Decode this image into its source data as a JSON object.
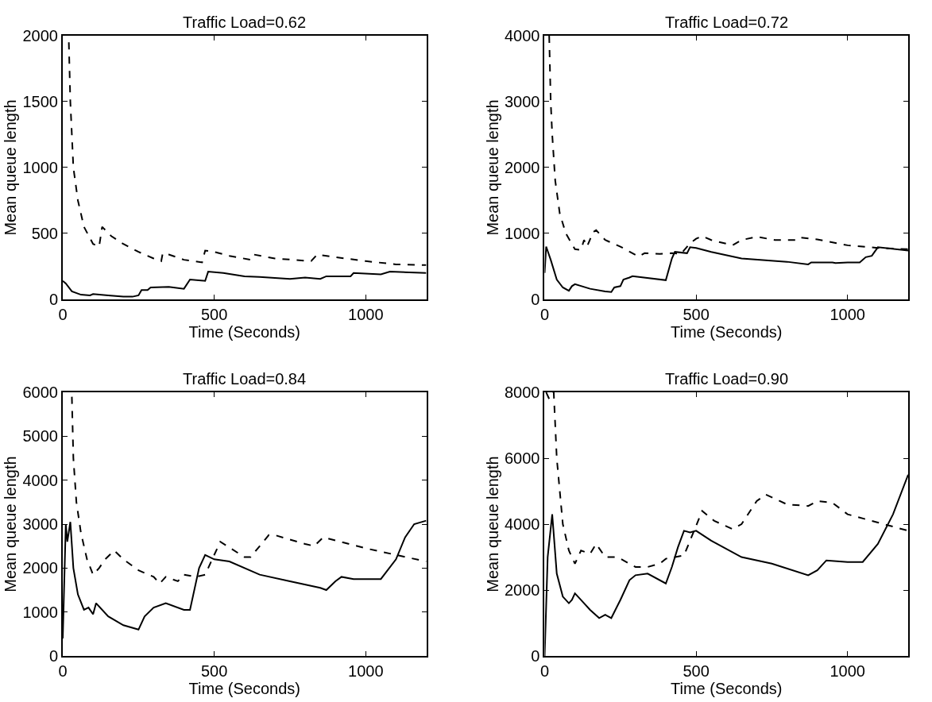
{
  "chart_data": [
    {
      "type": "line",
      "title": "Traffic Load=0.62",
      "xlabel": "Time (Seconds)",
      "ylabel": "Mean queue length",
      "xlim": [
        0,
        1200
      ],
      "xticks": [
        0,
        500,
        1000
      ],
      "ylim": [
        0,
        2000
      ],
      "yticks": [
        0,
        500,
        1000,
        1500,
        2000
      ],
      "series": [
        {
          "color": "#000000",
          "line_style": "solid",
          "x": [
            0,
            10,
            30,
            60,
            90,
            100,
            150,
            200,
            230,
            250,
            260,
            280,
            290,
            350,
            400,
            420,
            470,
            480,
            530,
            600,
            650,
            750,
            800,
            850,
            870,
            950,
            960,
            1050,
            1080,
            1200
          ],
          "values": [
            140,
            120,
            60,
            35,
            30,
            40,
            30,
            20,
            20,
            30,
            70,
            70,
            90,
            95,
            80,
            150,
            140,
            210,
            200,
            175,
            170,
            155,
            165,
            155,
            175,
            175,
            200,
            190,
            210,
            200
          ]
        },
        {
          "color": "#000000",
          "line_style": "dashed",
          "x": [
            20,
            25,
            35,
            50,
            70,
            100,
            120,
            130,
            160,
            200,
            250,
            300,
            325,
            330,
            350,
            400,
            460,
            470,
            500,
            550,
            620,
            630,
            700,
            820,
            840,
            900,
            1000,
            1100,
            1200
          ],
          "values": [
            1950,
            1500,
            1000,
            750,
            550,
            420,
            400,
            550,
            480,
            420,
            360,
            310,
            290,
            350,
            340,
            300,
            280,
            370,
            360,
            330,
            300,
            340,
            310,
            290,
            340,
            320,
            290,
            265,
            260
          ]
        }
      ]
    },
    {
      "type": "line",
      "title": "Traffic Load=0.72",
      "xlabel": "Time (Seconds)",
      "ylabel": "Mean queue length",
      "xlim": [
        0,
        1200
      ],
      "xticks": [
        0,
        500,
        1000
      ],
      "ylim": [
        0,
        4000
      ],
      "yticks": [
        0,
        1000,
        2000,
        3000,
        4000
      ],
      "series": [
        {
          "color": "#000000",
          "line_style": "solid",
          "x": [
            0,
            5,
            20,
            40,
            60,
            80,
            90,
            100,
            150,
            200,
            220,
            230,
            250,
            260,
            280,
            290,
            400,
            420,
            430,
            470,
            480,
            500,
            550,
            650,
            800,
            870,
            880,
            950,
            960,
            1000,
            1040,
            1060,
            1080,
            1100,
            1200
          ],
          "values": [
            400,
            800,
            600,
            300,
            180,
            130,
            200,
            230,
            160,
            120,
            110,
            180,
            200,
            300,
            330,
            350,
            290,
            620,
            720,
            700,
            790,
            780,
            720,
            620,
            570,
            530,
            560,
            560,
            550,
            560,
            560,
            640,
            660,
            790,
            740
          ]
        },
        {
          "color": "#000000",
          "line_style": "dashed",
          "x": [
            15,
            20,
            25,
            35,
            50,
            70,
            100,
            120,
            130,
            140,
            160,
            170,
            200,
            250,
            310,
            330,
            380,
            420,
            450,
            480,
            500,
            520,
            550,
            620,
            650,
            700,
            760,
            830,
            840,
            900,
            1000,
            1100,
            1200
          ],
          "values": [
            4000,
            3000,
            2500,
            1800,
            1300,
            1000,
            760,
            750,
            900,
            800,
            1020,
            1050,
            900,
            800,
            650,
            700,
            690,
            700,
            690,
            850,
            920,
            960,
            900,
            820,
            900,
            950,
            900,
            900,
            940,
            910,
            820,
            780,
            760
          ]
        }
      ]
    },
    {
      "type": "line",
      "title": "Traffic Load=0.84",
      "xlabel": "Time (Seconds)",
      "ylabel": "Mean queue length",
      "xlim": [
        0,
        1200
      ],
      "xticks": [
        0,
        500,
        1000
      ],
      "ylim": [
        0,
        6000
      ],
      "yticks": [
        0,
        1000,
        2000,
        3000,
        4000,
        5000,
        6000
      ],
      "series": [
        {
          "color": "#000000",
          "line_style": "solid",
          "x": [
            0,
            10,
            15,
            25,
            35,
            50,
            70,
            85,
            100,
            110,
            150,
            200,
            250,
            270,
            300,
            340,
            400,
            420,
            450,
            470,
            500,
            550,
            650,
            750,
            850,
            870,
            900,
            920,
            960,
            1000,
            1050,
            1100,
            1130,
            1160,
            1200
          ],
          "values": [
            400,
            3000,
            2600,
            3050,
            2000,
            1400,
            1050,
            1100,
            950,
            1200,
            900,
            700,
            600,
            900,
            1100,
            1200,
            1050,
            1050,
            2000,
            2300,
            2200,
            2150,
            1850,
            1700,
            1550,
            1500,
            1700,
            1800,
            1750,
            1750,
            1750,
            2200,
            2700,
            3000,
            3080
          ]
        },
        {
          "color": "#000000",
          "line_style": "dashed",
          "x": [
            30,
            35,
            45,
            60,
            80,
            100,
            120,
            140,
            170,
            200,
            250,
            300,
            320,
            340,
            380,
            400,
            440,
            470,
            500,
            520,
            600,
            620,
            680,
            700,
            800,
            830,
            860,
            1000,
            1100,
            1200
          ],
          "values": [
            5900,
            4500,
            3500,
            2800,
            2200,
            1850,
            2000,
            2200,
            2400,
            2200,
            1950,
            1800,
            1650,
            1800,
            1700,
            1850,
            1800,
            1850,
            2300,
            2600,
            2250,
            2250,
            2750,
            2750,
            2550,
            2500,
            2700,
            2450,
            2300,
            2150
          ]
        }
      ]
    },
    {
      "type": "line",
      "title": "Traffic Load=0.90",
      "xlabel": "Time (Seconds)",
      "ylabel": "Mean queue length",
      "xlim": [
        0,
        1200
      ],
      "xticks": [
        0,
        500,
        1000
      ],
      "ylim": [
        0,
        8000
      ],
      "yticks": [
        0,
        2000,
        4000,
        6000,
        8000
      ],
      "series": [
        {
          "color": "#000000",
          "line_style": "solid",
          "x": [
            0,
            10,
            25,
            40,
            60,
            80,
            90,
            100,
            150,
            180,
            200,
            220,
            250,
            280,
            300,
            340,
            400,
            420,
            440,
            460,
            480,
            500,
            550,
            650,
            750,
            870,
            900,
            930,
            1000,
            1050,
            1100,
            1150,
            1200
          ],
          "values": [
            0,
            3000,
            4300,
            2500,
            1800,
            1600,
            1700,
            1900,
            1400,
            1150,
            1250,
            1150,
            1700,
            2300,
            2450,
            2500,
            2200,
            2700,
            3300,
            3800,
            3750,
            3800,
            3500,
            3000,
            2800,
            2450,
            2600,
            2900,
            2850,
            2850,
            3400,
            4300,
            5500
          ]
        },
        {
          "color": "#000000",
          "line_style": "dashed",
          "x": [
            5,
            15,
            30,
            40,
            60,
            80,
            100,
            120,
            150,
            170,
            200,
            240,
            300,
            340,
            380,
            400,
            460,
            480,
            520,
            560,
            620,
            650,
            700,
            730,
            800,
            870,
            900,
            950,
            1000,
            1100,
            1200
          ],
          "values": [
            8000,
            7800,
            8000,
            6000,
            4000,
            3200,
            2800,
            3200,
            3100,
            3400,
            3000,
            3000,
            2700,
            2700,
            2800,
            2950,
            3050,
            3500,
            4400,
            4100,
            3850,
            4000,
            4700,
            4900,
            4600,
            4550,
            4700,
            4650,
            4300,
            4050,
            3800
          ]
        }
      ]
    }
  ]
}
